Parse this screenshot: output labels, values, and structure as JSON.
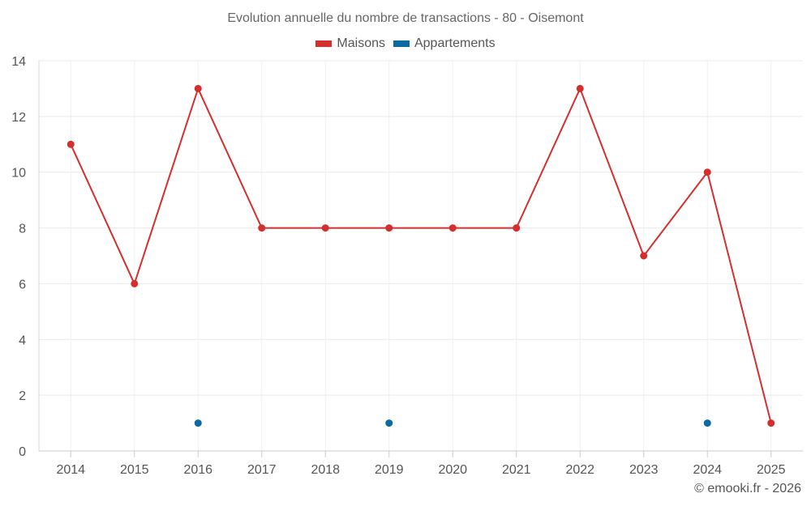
{
  "chart_data": {
    "type": "line",
    "title": "Evolution annuelle du nombre de transactions - 80 - Oisemont",
    "xlabel": "",
    "ylabel": "",
    "categories": [
      "2014",
      "2015",
      "2016",
      "2017",
      "2018",
      "2019",
      "2020",
      "2021",
      "2022",
      "2023",
      "2024",
      "2025"
    ],
    "ylim": [
      0,
      14
    ],
    "yticks": [
      0,
      2,
      4,
      6,
      8,
      10,
      12,
      14
    ],
    "grid": true,
    "legend_position": "top-center",
    "series": [
      {
        "name": "Maisons",
        "color": "#d32f2f",
        "values": [
          11,
          6,
          13,
          8,
          8,
          8,
          8,
          8,
          13,
          7,
          10,
          1
        ],
        "draw_line": true
      },
      {
        "name": "Appartements",
        "color": "#0b6aa2",
        "values": [
          null,
          null,
          1,
          null,
          null,
          1,
          null,
          null,
          null,
          null,
          1,
          null
        ],
        "draw_line": false
      }
    ]
  },
  "footer": {
    "credit": "© emooki.fr - 2026"
  }
}
